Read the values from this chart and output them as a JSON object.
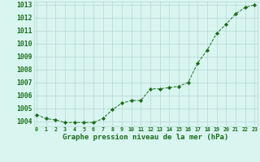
{
  "x": [
    0,
    1,
    2,
    3,
    4,
    5,
    6,
    7,
    8,
    9,
    10,
    11,
    12,
    13,
    14,
    15,
    16,
    17,
    18,
    19,
    20,
    21,
    22,
    23
  ],
  "y": [
    1004.5,
    1004.2,
    1004.1,
    1003.9,
    1003.9,
    1003.9,
    1003.9,
    1004.2,
    1004.9,
    1005.4,
    1005.6,
    1005.6,
    1006.5,
    1006.5,
    1006.6,
    1006.7,
    1007.0,
    1008.5,
    1009.5,
    1010.8,
    1011.5,
    1012.3,
    1012.8,
    1013.0
  ],
  "line_color": "#1a6b1a",
  "marker": "D",
  "marker_size": 2.2,
  "bg_color": "#d8f5f0",
  "grid_color": "#b8d8d4",
  "xlabel": "Graphe pression niveau de la mer (hPa)",
  "xlabel_fontsize": 6.5,
  "ylabel_ticks": [
    1004,
    1005,
    1006,
    1007,
    1008,
    1009,
    1010,
    1011,
    1012,
    1013
  ],
  "xlim": [
    -0.3,
    23.3
  ],
  "ylim": [
    1003.6,
    1013.25
  ],
  "xticks": [
    0,
    1,
    2,
    3,
    4,
    5,
    6,
    7,
    8,
    9,
    10,
    11,
    12,
    13,
    14,
    15,
    16,
    17,
    18,
    19,
    20,
    21,
    22,
    23
  ],
  "xtick_fontsize": 4.8,
  "ytick_fontsize": 5.8,
  "linewidth": 0.7
}
